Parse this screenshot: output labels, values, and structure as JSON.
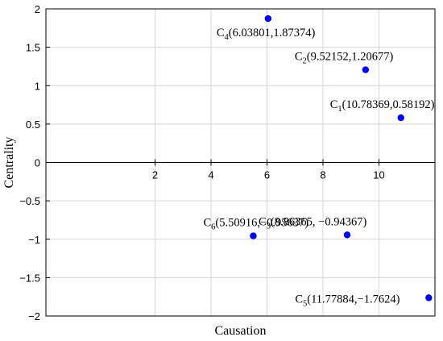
{
  "chart_data": {
    "type": "scatter",
    "title": "",
    "xlabel": "Causation",
    "ylabel": "Centrality",
    "xlim": [
      -1.9,
      12
    ],
    "ylim": [
      -2,
      2
    ],
    "x_ticks": [
      2,
      4,
      6,
      8,
      10
    ],
    "y_ticks": [
      -2,
      -1.5,
      -1,
      -0.5,
      0,
      0.5,
      1,
      1.5,
      2
    ],
    "x_tick_labels": [
      "2",
      "4",
      "6",
      "8",
      "10"
    ],
    "y_tick_labels": [
      "−2",
      "−1.5",
      "−1",
      "−0.5",
      "0",
      "0.5",
      "1",
      "1.5",
      "2"
    ],
    "grid": true,
    "marker_color": "#0000ff",
    "points": [
      {
        "name": "C",
        "sub": "1",
        "x": 10.78369,
        "y": 0.58192,
        "coord": "(10.78369,0.58192)"
      },
      {
        "name": "C",
        "sub": "2",
        "x": 9.52152,
        "y": 1.20677,
        "coord": "(9.52152,1.20677)"
      },
      {
        "name": "C",
        "sub": "3",
        "x": 8.86365,
        "y": -0.94367,
        "coord": "(8.86365, −0.94367)"
      },
      {
        "name": "C",
        "sub": "4",
        "x": 6.03801,
        "y": 1.87374,
        "coord": "(6.03801,1.87374)"
      },
      {
        "name": "C",
        "sub": "5",
        "x": 11.77884,
        "y": -1.7624,
        "coord": "(11.77884,−1.7624)"
      },
      {
        "name": "C",
        "sub": "6",
        "x": 5.50916,
        "y": -0.95637,
        "coord": "(5.50916,−0.95637)"
      }
    ]
  }
}
